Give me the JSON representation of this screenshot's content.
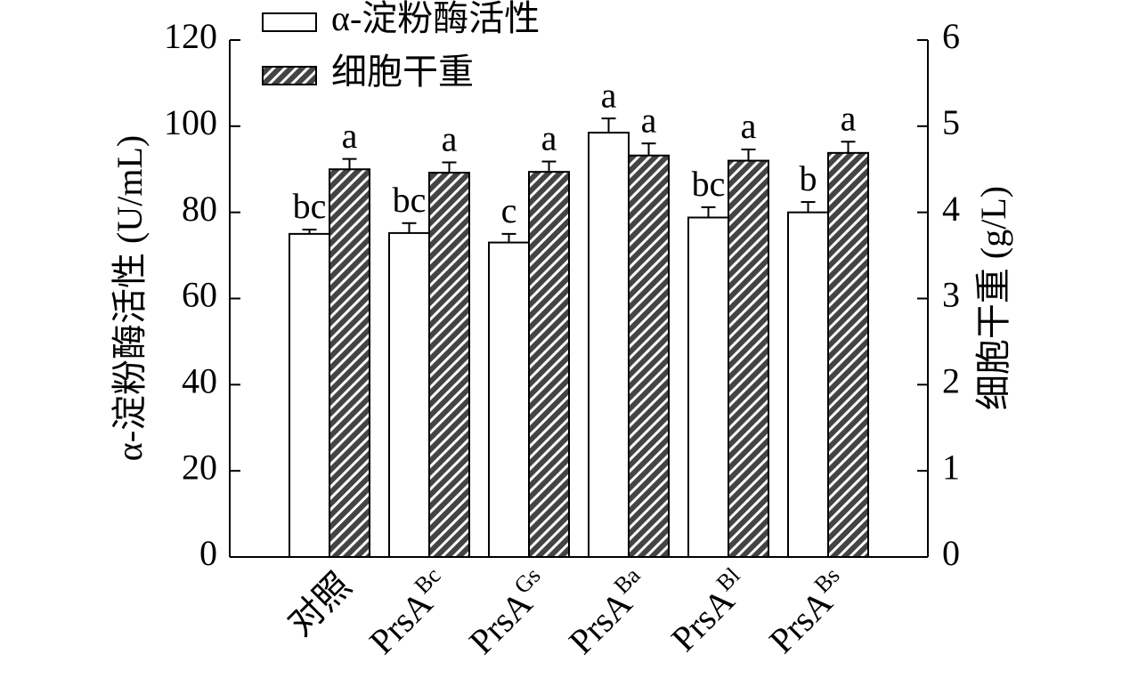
{
  "chart_data": {
    "type": "bar",
    "categories": [
      "对照",
      {
        "text": "PrsA",
        "sup": "Bc"
      },
      {
        "text": "PrsA",
        "sup": "Gs"
      },
      {
        "text": "PrsA",
        "sup": "Ba"
      },
      {
        "text": "PrsA",
        "sup": "Bl"
      },
      {
        "text": "PrsA",
        "sup": "Bs"
      }
    ],
    "series": [
      {
        "name": "α-淀粉酶活性",
        "color": "#ffffff",
        "pattern": false,
        "values": [
          75,
          75.2,
          73,
          98.5,
          78.8,
          80
        ],
        "errors": [
          1,
          2.3,
          2,
          3.3,
          2.4,
          2.4
        ],
        "letters": [
          "bc",
          "bc",
          "c",
          "a",
          "bc",
          "b"
        ]
      },
      {
        "name": "细胞干重",
        "color": "#444444",
        "pattern": true,
        "axis": "y2",
        "values": [
          4.5,
          4.46,
          4.47,
          4.66,
          4.6,
          4.69
        ],
        "errors": [
          0.12,
          0.12,
          0.12,
          0.14,
          0.13,
          0.13
        ],
        "letters": [
          "a",
          "a",
          "a",
          "a",
          "a",
          "a"
        ]
      }
    ],
    "ylabel": "α-淀粉酶活性 (U/mL)",
    "y2label": "细胞干重 (g/L)",
    "ylim": [
      0,
      120
    ],
    "yticks": [
      0,
      20,
      40,
      60,
      80,
      100,
      120
    ],
    "y2lim": [
      0,
      6
    ],
    "y2ticks": [
      0,
      1,
      2,
      3,
      4,
      5,
      6
    ],
    "legend": "top-left"
  }
}
